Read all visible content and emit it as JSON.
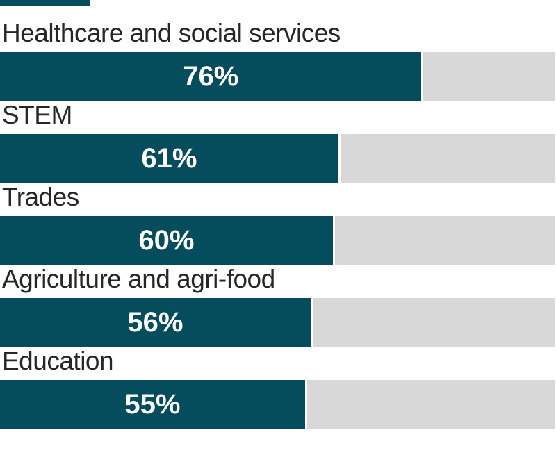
{
  "chart_data": {
    "type": "bar",
    "orientation": "horizontal",
    "categories": [
      "Healthcare and social services",
      "STEM",
      "Trades",
      "Agriculture and agri-food",
      "Education"
    ],
    "values": [
      76,
      61,
      60,
      56,
      55
    ],
    "value_labels": [
      "76%",
      "61%",
      "60%",
      "56%",
      "55%"
    ],
    "xlim": [
      0,
      100
    ],
    "grid": false,
    "legend": false,
    "axes_visible": false,
    "value_label_position": "centered-inside-fill",
    "category_label_position": "above-bar",
    "bar_color": "#054c5c",
    "track_color": "#d8d8d8",
    "category_label_color": "#262626",
    "value_label_color": "#ffffff",
    "background_color": "#ffffff"
  },
  "decorations": {
    "top_left_cropped_bar": {
      "description": "partial bar fragment cut off at top-left corner",
      "color": "#054c5c"
    }
  }
}
